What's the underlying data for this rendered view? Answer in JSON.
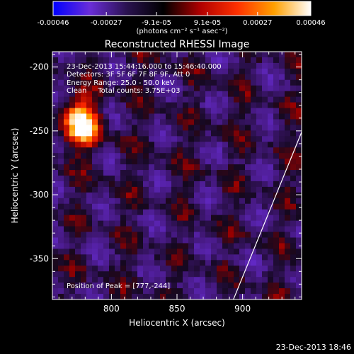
{
  "chart_data": {
    "type": "heatmap",
    "title": "Reconstructed RHESSI Image",
    "xlabel": "Heliocentric X (arcsec)",
    "ylabel": "Heliocentric Y (arcsec)",
    "xlim": [
      755,
      945
    ],
    "ylim": [
      -382,
      -188
    ],
    "x_ticks": [
      800,
      850,
      900
    ],
    "y_ticks": [
      -200,
      -250,
      -300,
      -350
    ],
    "colorbar": {
      "range": [
        -0.00046,
        0.00046
      ],
      "tick_values": [
        -0.00046,
        -0.00027,
        -9.1e-05,
        9.1e-05,
        0.00027,
        0.00046
      ],
      "tick_labels": [
        "-0.00046",
        "-0.00027",
        "-9.1e-05",
        "9.1e-05",
        "0.00027",
        "0.00046"
      ],
      "unit_label": "(photons cm⁻² s⁻¹ asec⁻²)",
      "colormap": [
        "#0000ff",
        "#6a2dd8",
        "#2a1250",
        "#000000",
        "#b00000",
        "#ff3000",
        "#ffa000",
        "#ffffff"
      ]
    },
    "annotations": [
      "23-Dec-2013 15:44:16.000 to 15:46:40.000",
      "Detectors: 3F 5F 6F 7F 8F 9F, Att 0",
      "Energy Range: 25.0 - 50.0 keV",
      "Clean     Total counts: 3.75E+03"
    ],
    "peak_label": "Position of Peak = [777,-244]",
    "peak": {
      "x": 777,
      "y": -244
    },
    "limb_line": [
      [
        893,
        -382
      ],
      [
        945,
        -251
      ]
    ],
    "timestamp": "23-Dec-2013 18:46"
  }
}
